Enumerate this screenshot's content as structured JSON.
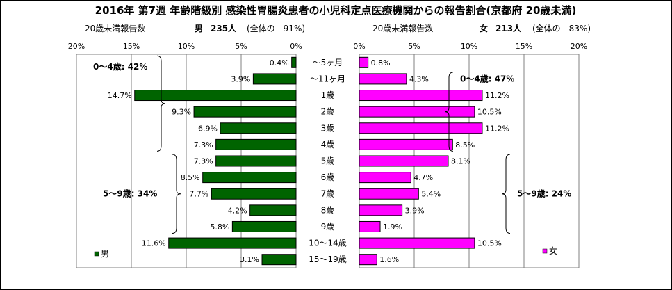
{
  "chart_data": {
    "type": "bar",
    "title": "2016年 第7週 年齢階級別 感染性胃腸炎患者の小児科定点医療機関からの報告割合(京都府 20歳未満)",
    "categories": [
      "～5ヶ月",
      "～11ヶ月",
      "1歳",
      "2歳",
      "3歳",
      "4歳",
      "5歳",
      "6歳",
      "7歳",
      "8歳",
      "9歳",
      "10～14歳",
      "15～19歳"
    ],
    "xlim": [
      0,
      20
    ],
    "ticks": [
      0,
      5,
      10,
      15,
      20
    ],
    "tick_labels_left": [
      "20%",
      "15%",
      "10%",
      "5%",
      "0%"
    ],
    "tick_labels_right": [
      "0%",
      "5%",
      "10%",
      "15%",
      "20%"
    ],
    "grid": true,
    "series": [
      {
        "name": "男",
        "side": "left",
        "color": "#006400",
        "header_metric": "20歳未満報告数",
        "header_sex": "男",
        "header_count": "235人",
        "header_share": "(全体の　91%)",
        "values": [
          0.4,
          3.9,
          14.7,
          9.3,
          6.9,
          7.3,
          7.3,
          8.5,
          7.7,
          4.2,
          5.8,
          11.6,
          3.1
        ],
        "labels": [
          "0.4%",
          "3.9%",
          "14.7%",
          "9.3%",
          "6.9%",
          "7.3%",
          "7.3%",
          "8.5%",
          "7.7%",
          "4.2%",
          "5.8%",
          "11.6%",
          "3.1%"
        ],
        "brackets": [
          {
            "label": "0～4歳: 42%",
            "from": 0,
            "to": 5
          },
          {
            "label": "5～9歳: 34%",
            "from": 6,
            "to": 10
          }
        ],
        "legend": "男"
      },
      {
        "name": "女",
        "side": "right",
        "color": "#ff00ff",
        "header_metric": "20歳未満報告数",
        "header_sex": "女",
        "header_count": "213人",
        "header_share": "(全体の　83%)",
        "values": [
          0.8,
          4.3,
          11.2,
          10.5,
          11.2,
          8.5,
          8.1,
          4.7,
          5.4,
          3.9,
          1.9,
          10.5,
          1.6
        ],
        "labels": [
          "0.8%",
          "4.3%",
          "11.2%",
          "10.5%",
          "11.2%",
          "8.5%",
          "8.1%",
          "4.7%",
          "5.4%",
          "3.9%",
          "1.9%",
          "10.5%",
          "1.6%"
        ],
        "brackets": [
          {
            "label": "0～4歳: 47%",
            "from": 1,
            "to": 5
          },
          {
            "label": "5～9歳: 24%",
            "from": 6,
            "to": 10
          }
        ],
        "legend": "女"
      }
    ]
  }
}
